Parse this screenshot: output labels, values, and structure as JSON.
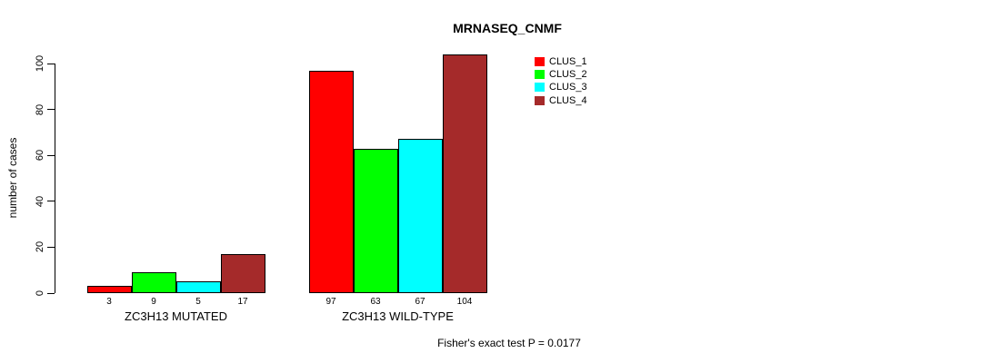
{
  "chart_data": {
    "type": "bar",
    "title": "MRNASEQ_CNMF",
    "xlabel": "",
    "ylabel": "number of cases",
    "categories": [
      "ZC3H13 MUTATED",
      "ZC3H13 WILD-TYPE"
    ],
    "series": [
      {
        "name": "CLUS_1",
        "color": "#FF0000",
        "values": [
          3,
          97
        ]
      },
      {
        "name": "CLUS_2",
        "color": "#00FF00",
        "values": [
          9,
          63
        ]
      },
      {
        "name": "CLUS_3",
        "color": "#00FFFF",
        "values": [
          5,
          67
        ]
      },
      {
        "name": "CLUS_4",
        "color": "#A52A2A",
        "values": [
          17,
          104
        ]
      }
    ],
    "ylim": [
      0,
      100
    ],
    "yticks": [
      0,
      20,
      40,
      60,
      80,
      100
    ],
    "grid": false,
    "legend_position": "top-right",
    "bar_value_labels": true,
    "annotation": "Fisher's exact test P = 0.0177"
  }
}
